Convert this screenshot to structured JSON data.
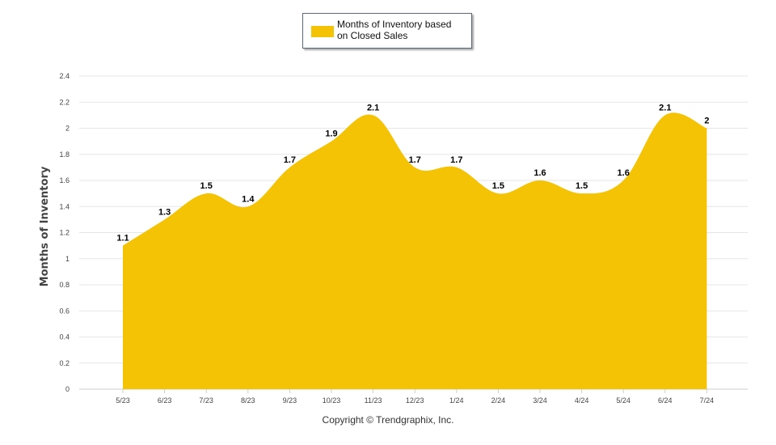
{
  "chart_data": {
    "type": "area",
    "title": "",
    "xlabel": "",
    "ylabel": "Months of Inventory",
    "categories": [
      "5/23",
      "6/23",
      "7/23",
      "8/23",
      "9/23",
      "10/23",
      "11/23",
      "12/23",
      "1/24",
      "2/24",
      "3/24",
      "4/24",
      "5/24",
      "6/24",
      "7/24"
    ],
    "series": [
      {
        "name": "Months of Inventory based on Closed Sales",
        "values": [
          1.1,
          1.3,
          1.5,
          1.4,
          1.7,
          1.9,
          2.1,
          1.7,
          1.7,
          1.5,
          1.6,
          1.5,
          1.6,
          2.1,
          2
        ]
      }
    ],
    "yticks": [
      "0",
      "0.2",
      "0.4",
      "0.6",
      "0.8",
      "1",
      "1.2",
      "1.4",
      "1.6",
      "1.8",
      "2",
      "2.2",
      "2.4"
    ],
    "ylim": [
      0,
      2.4
    ],
    "grid": true,
    "legend_position": "top-center",
    "colors": {
      "area": "#F5C306",
      "grid": "#e6e6e6",
      "axis": "#cccccc"
    }
  },
  "legend": {
    "label_line1": "Months of Inventory based",
    "label_line2": "on Closed Sales"
  },
  "footer": {
    "copyright": "Copyright © Trendgraphix, Inc."
  }
}
